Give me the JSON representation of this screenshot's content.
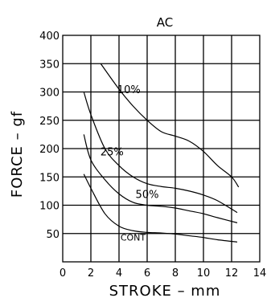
{
  "chart_data": {
    "type": "line",
    "title": "AC",
    "xlabel": "STROKE  –  mm",
    "ylabel": "FORCE  –  gf",
    "xlim": [
      0,
      14
    ],
    "ylim": [
      0,
      400
    ],
    "x_ticks": [
      "0",
      "2",
      "4",
      "6",
      "8",
      "10",
      "12",
      "14"
    ],
    "y_ticks": [
      "50",
      "100",
      "150",
      "200",
      "250",
      "300",
      "350",
      "400"
    ],
    "grid": true,
    "series": [
      {
        "name": "10%",
        "points": [
          [
            2.7,
            350
          ],
          [
            4,
            305
          ],
          [
            5,
            275
          ],
          [
            6,
            250
          ],
          [
            7,
            230
          ],
          [
            8,
            222
          ],
          [
            9,
            213
          ],
          [
            10,
            195
          ],
          [
            11,
            170
          ],
          [
            12,
            150
          ],
          [
            12.5,
            132
          ]
        ]
      },
      {
        "name": "25%",
        "points": [
          [
            1.5,
            300
          ],
          [
            2,
            260
          ],
          [
            3,
            200
          ],
          [
            4,
            170
          ],
          [
            5,
            150
          ],
          [
            6,
            138
          ],
          [
            7,
            133
          ],
          [
            8,
            130
          ],
          [
            9,
            125
          ],
          [
            10,
            118
          ],
          [
            11,
            108
          ],
          [
            12.4,
            87
          ]
        ]
      },
      {
        "name": "50%",
        "points": [
          [
            1.5,
            225
          ],
          [
            2,
            180
          ],
          [
            3,
            145
          ],
          [
            4,
            120
          ],
          [
            5,
            105
          ],
          [
            6,
            100
          ],
          [
            7,
            98
          ],
          [
            8,
            95
          ],
          [
            9,
            90
          ],
          [
            10,
            85
          ],
          [
            11,
            78
          ],
          [
            12.4,
            69
          ]
        ]
      },
      {
        "name": "CONT",
        "points": [
          [
            1.5,
            155
          ],
          [
            2,
            130
          ],
          [
            3,
            85
          ],
          [
            4,
            63
          ],
          [
            5,
            55
          ],
          [
            6,
            52
          ],
          [
            7,
            51
          ],
          [
            8,
            49
          ],
          [
            9,
            46
          ],
          [
            10,
            43
          ],
          [
            11,
            39
          ],
          [
            12.4,
            35
          ]
        ]
      }
    ],
    "labels": [
      {
        "text": "10%",
        "x": 4.7,
        "y": 305
      },
      {
        "text": "25%",
        "x": 3.5,
        "y": 195
      },
      {
        "text": "50%",
        "x": 6.0,
        "y": 120
      },
      {
        "text": "CONT",
        "x": 5.0,
        "y": 45
      }
    ]
  }
}
